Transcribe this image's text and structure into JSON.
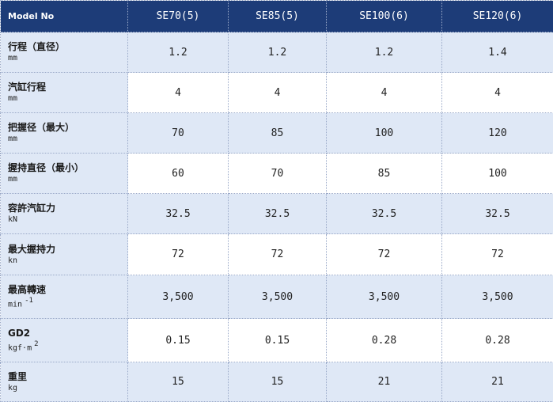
{
  "table": {
    "header": {
      "model_label": "Model No",
      "columns": [
        "SE70(5)",
        "SE85(5)",
        "SE100(6)",
        "SE120(6)"
      ]
    },
    "rows": [
      {
        "name": "行程（直径）",
        "unit": "mm",
        "sup": "",
        "values": [
          "1.2",
          "1.2",
          "1.2",
          "1.4"
        ]
      },
      {
        "name": "汽缸行程",
        "unit": "mm",
        "sup": "",
        "values": [
          "4",
          "4",
          "4",
          "4"
        ]
      },
      {
        "name": "把握径（最大）",
        "unit": "mm",
        "sup": "",
        "values": [
          "70",
          "85",
          "100",
          "120"
        ]
      },
      {
        "name": "握持直径（最小）",
        "unit": "mm",
        "sup": "",
        "values": [
          "60",
          "70",
          "85",
          "100"
        ]
      },
      {
        "name": "容許汽缸力",
        "unit": "kN",
        "sup": "",
        "values": [
          "32.5",
          "32.5",
          "32.5",
          "32.5"
        ]
      },
      {
        "name": "最大握持力",
        "unit": "kn",
        "sup": "",
        "values": [
          "72",
          "72",
          "72",
          "72"
        ]
      },
      {
        "name": "最高轉速",
        "unit": "min",
        "sup": "-1",
        "values": [
          "3,500",
          "3,500",
          "3,500",
          "3,500"
        ]
      },
      {
        "name": "GD2",
        "unit": "kgf·m",
        "sup": "2",
        "values": [
          "0.15",
          "0.15",
          "0.28",
          "0.28"
        ]
      },
      {
        "name": "重里",
        "unit": "kg",
        "sup": "",
        "values": [
          "15",
          "15",
          "21",
          "21"
        ]
      }
    ]
  }
}
